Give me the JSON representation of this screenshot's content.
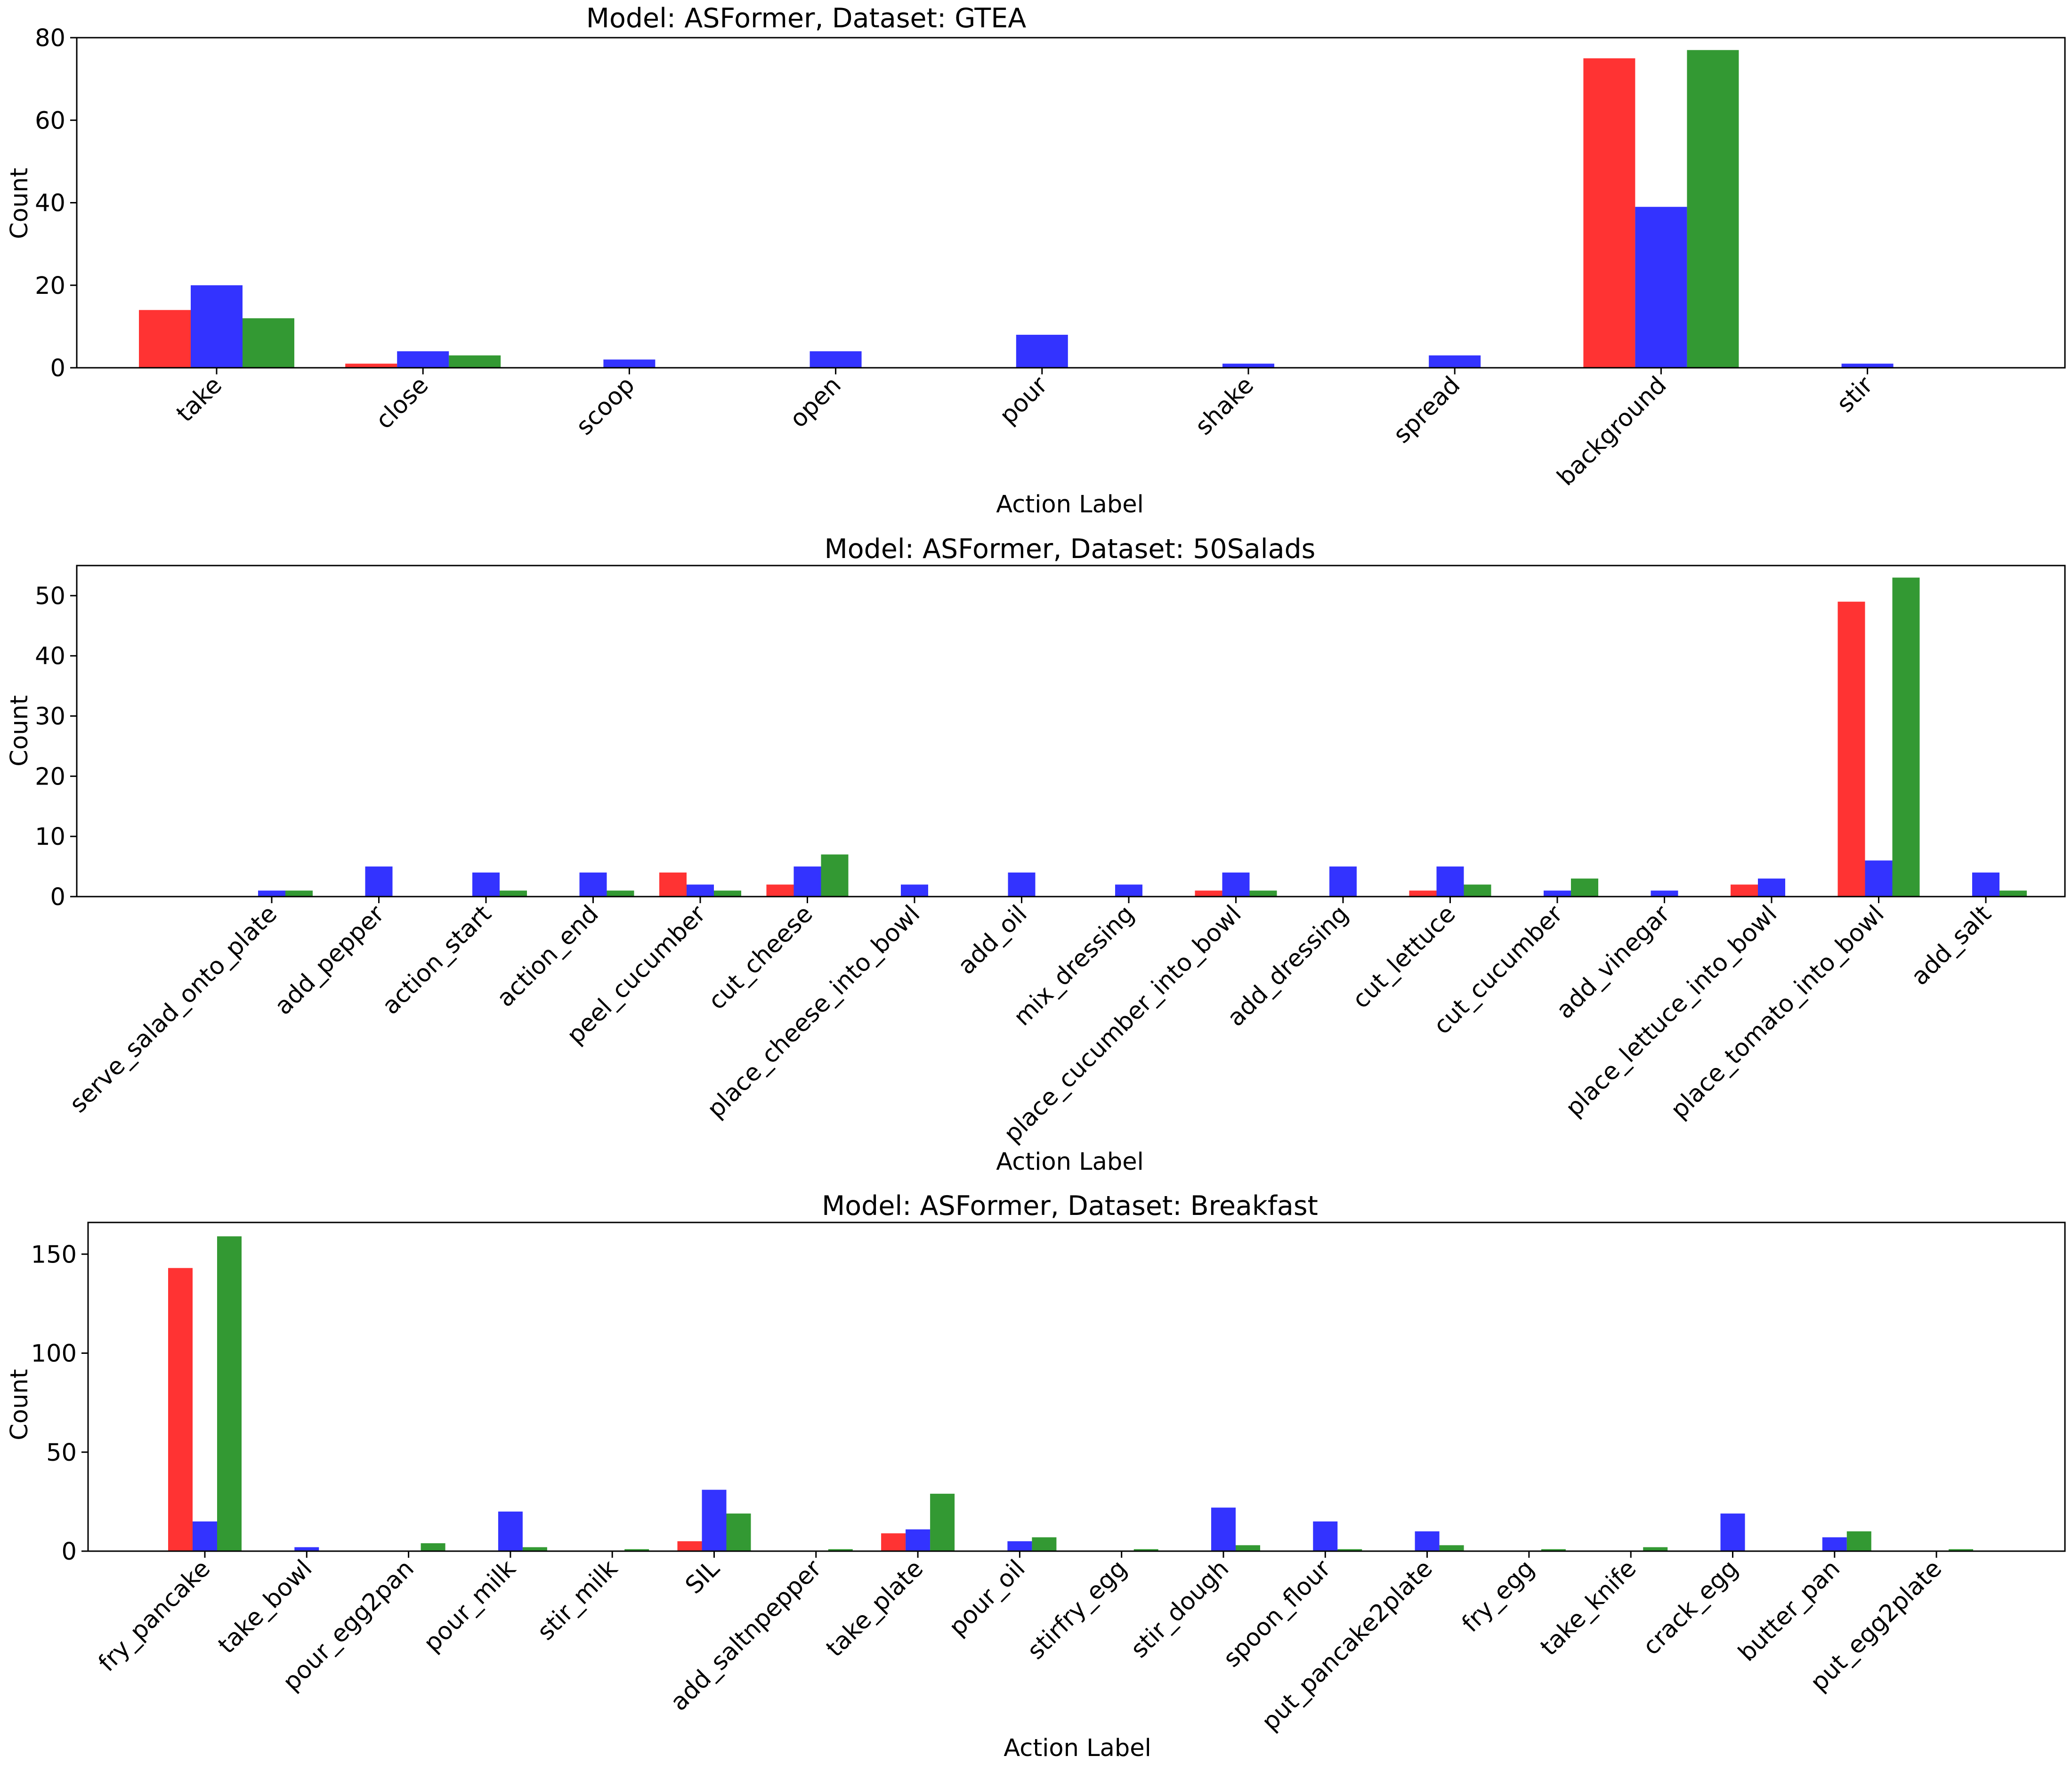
{
  "chart_data": [
    {
      "type": "bar",
      "title": "Model: ASFormer, Dataset: GTEA",
      "xlabel": "Action Label",
      "ylabel": "Count",
      "ylim": [
        0,
        80
      ],
      "yticks": [
        0,
        20,
        40,
        60,
        80
      ],
      "categories": [
        "take",
        "close",
        "scoop",
        "open",
        "pour",
        "shake",
        "spread",
        "background",
        "stir"
      ],
      "series": [
        {
          "name": "red",
          "color": "#ff0000",
          "values": [
            14,
            1,
            0,
            0,
            0,
            0,
            0,
            75,
            0
          ]
        },
        {
          "name": "blue",
          "color": "#0000ff",
          "values": [
            20,
            4,
            2,
            4,
            8,
            1,
            3,
            39,
            1
          ]
        },
        {
          "name": "green",
          "color": "#008000",
          "values": [
            12,
            3,
            0,
            0,
            0,
            0,
            0,
            77,
            0
          ]
        }
      ]
    },
    {
      "type": "bar",
      "title": "Model: ASFormer, Dataset: 50Salads",
      "xlabel": "Action Label",
      "ylabel": "Count",
      "ylim": [
        0,
        55
      ],
      "yticks": [
        0,
        10,
        20,
        30,
        40,
        50
      ],
      "categories": [
        "serve_salad_onto_plate",
        "add_pepper",
        "action_start",
        "action_end",
        "peel_cucumber",
        "cut_cheese",
        "place_cheese_into_bowl",
        "add_oil",
        "mix_dressing",
        "place_cucumber_into_bowl",
        "add_dressing",
        "cut_lettuce",
        "cut_cucumber",
        "add_vinegar",
        "place_lettuce_into_bowl",
        "place_tomato_into_bowl",
        "add_salt"
      ],
      "series": [
        {
          "name": "red",
          "color": "#ff0000",
          "values": [
            0,
            0,
            0,
            0,
            4,
            2,
            0,
            0,
            0,
            1,
            0,
            1,
            0,
            0,
            2,
            49,
            0
          ]
        },
        {
          "name": "blue",
          "color": "#0000ff",
          "values": [
            1,
            5,
            4,
            4,
            2,
            5,
            2,
            4,
            2,
            4,
            5,
            5,
            1,
            1,
            3,
            6,
            4
          ]
        },
        {
          "name": "green",
          "color": "#008000",
          "values": [
            1,
            0,
            1,
            1,
            1,
            7,
            0,
            0,
            0,
            1,
            0,
            2,
            3,
            0,
            0,
            53,
            1
          ]
        }
      ]
    },
    {
      "type": "bar",
      "title": "Model: ASFormer, Dataset: Breakfast",
      "xlabel": "Action Label",
      "ylabel": "Count",
      "ylim": [
        0,
        166
      ],
      "yticks": [
        0,
        50,
        100,
        150
      ],
      "categories": [
        "fry_pancake",
        "take_bowl",
        "pour_egg2pan",
        "pour_milk",
        "stir_milk",
        "SIL",
        "add_saltnpepper",
        "take_plate",
        "pour_oil",
        "stirfry_egg",
        "stir_dough",
        "spoon_flour",
        "put_pancake2plate",
        "fry_egg",
        "take_knife",
        "crack_egg",
        "butter_pan",
        "put_egg2plate"
      ],
      "series": [
        {
          "name": "red",
          "color": "#ff0000",
          "values": [
            143,
            0,
            0,
            0,
            0,
            5,
            0,
            9,
            0,
            0,
            0,
            0,
            0,
            0,
            0,
            0,
            0,
            0
          ]
        },
        {
          "name": "blue",
          "color": "#0000ff",
          "values": [
            15,
            2,
            0,
            20,
            0,
            31,
            0,
            11,
            5,
            0,
            22,
            15,
            10,
            0,
            0,
            19,
            7,
            0
          ]
        },
        {
          "name": "green",
          "color": "#008000",
          "values": [
            159,
            0,
            4,
            2,
            1,
            19,
            1,
            29,
            7,
            1,
            3,
            1,
            3,
            1,
            2,
            0,
            10,
            1
          ]
        }
      ]
    }
  ]
}
